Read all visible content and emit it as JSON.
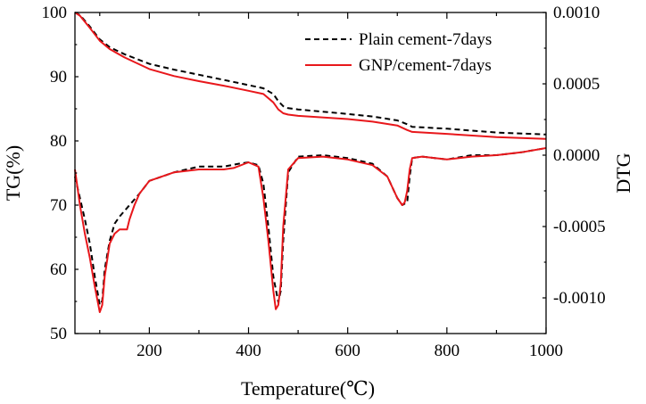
{
  "chart_data": {
    "type": "line",
    "xlabel": "Temperature(℃)",
    "ylabel_left": "TG(%)",
    "ylabel_right": "DTG",
    "xlim": [
      50,
      1000
    ],
    "ylim_left": [
      50,
      100
    ],
    "ylim_right": [
      -0.00125,
      0.001
    ],
    "x_ticks": [
      200,
      400,
      600,
      800,
      1000
    ],
    "x_tick_labels": [
      "200",
      "400",
      "600",
      "800",
      "1000"
    ],
    "y_left_ticks": [
      50,
      60,
      70,
      80,
      90,
      100
    ],
    "y_left_tick_labels": [
      "50",
      "60",
      "70",
      "80",
      "90",
      "100"
    ],
    "y_right_ticks": [
      -0.001,
      -0.0005,
      0.0,
      0.0005,
      0.001
    ],
    "y_right_tick_labels": [
      "-0.0010",
      "-0.0005",
      "0.0000",
      "0.0005",
      "0.0010"
    ],
    "grid": false,
    "legend_position": "top-right",
    "series": [
      {
        "name": "Plain cement-7days",
        "axis": "left",
        "color": "#000000",
        "style": "dashed",
        "x": [
          50,
          60,
          80,
          100,
          120,
          150,
          200,
          250,
          300,
          350,
          400,
          430,
          450,
          460,
          470,
          480,
          500,
          600,
          650,
          700,
          720,
          730,
          800,
          900,
          1000
        ],
        "y": [
          100,
          99.6,
          97.8,
          95.8,
          94.6,
          93.5,
          92.0,
          91.1,
          90.3,
          89.5,
          88.7,
          88.2,
          87.3,
          86.2,
          85.4,
          85.1,
          84.9,
          84.2,
          83.8,
          83.2,
          82.6,
          82.2,
          81.9,
          81.3,
          81.0
        ]
      },
      {
        "name": "GNP/cement-7days",
        "axis": "left",
        "color": "#e8171b",
        "style": "solid",
        "x": [
          50,
          60,
          80,
          100,
          120,
          150,
          200,
          250,
          300,
          350,
          400,
          430,
          450,
          460,
          470,
          480,
          500,
          600,
          650,
          700,
          720,
          730,
          800,
          900,
          1000
        ],
        "y": [
          100,
          99.5,
          97.6,
          95.6,
          94.3,
          93.0,
          91.2,
          90.1,
          89.3,
          88.6,
          87.8,
          87.3,
          86.0,
          84.9,
          84.3,
          84.1,
          83.9,
          83.4,
          83.0,
          82.4,
          81.7,
          81.4,
          81.1,
          80.6,
          80.3
        ]
      },
      {
        "name": "",
        "axis": "right",
        "color": "#000000",
        "style": "dashed",
        "x": [
          50,
          60,
          70,
          80,
          90,
          100,
          105,
          110,
          120,
          130,
          140,
          160,
          180,
          200,
          250,
          300,
          350,
          380,
          400,
          420,
          430,
          440,
          450,
          460,
          465,
          470,
          480,
          500,
          550,
          600,
          650,
          680,
          700,
          710,
          720,
          725,
          730,
          750,
          800,
          850,
          900,
          950,
          1000
        ],
        "y": [
          -0.00015,
          -0.0003,
          -0.00045,
          -0.00062,
          -0.00085,
          -0.00105,
          -0.00102,
          -0.0008,
          -0.0006,
          -0.00048,
          -0.00043,
          -0.00035,
          -0.00027,
          -0.00018,
          -0.00012,
          -8e-05,
          -8e-05,
          -6e-05,
          -5e-05,
          -7e-05,
          -0.0002,
          -0.0005,
          -0.00085,
          -0.00103,
          -0.00095,
          -0.0006,
          -0.00012,
          -1e-05,
          0.0,
          -2e-05,
          -6e-05,
          -0.00015,
          -0.0003,
          -0.00035,
          -0.00033,
          -0.00015,
          -2e-05,
          -1e-05,
          -3e-05,
          0.0,
          0.0,
          2e-05,
          5e-05
        ]
      },
      {
        "name": "",
        "axis": "right",
        "color": "#e8171b",
        "style": "solid",
        "x": [
          50,
          60,
          70,
          80,
          90,
          100,
          105,
          110,
          120,
          130,
          140,
          155,
          160,
          170,
          180,
          200,
          250,
          300,
          350,
          370,
          400,
          420,
          430,
          440,
          450,
          455,
          460,
          465,
          470,
          480,
          500,
          550,
          600,
          650,
          680,
          700,
          710,
          715,
          720,
          725,
          730,
          750,
          800,
          850,
          900,
          950,
          1000
        ],
        "y": [
          -0.0001,
          -0.00035,
          -0.00055,
          -0.00072,
          -0.00092,
          -0.0011,
          -0.00105,
          -0.00085,
          -0.00062,
          -0.00055,
          -0.00052,
          -0.00052,
          -0.00045,
          -0.00035,
          -0.00027,
          -0.00018,
          -0.00012,
          -0.0001,
          -0.0001,
          -9e-05,
          -5e-05,
          -8e-05,
          -0.0003,
          -0.0006,
          -0.00095,
          -0.00108,
          -0.00105,
          -0.0009,
          -0.0005,
          -0.0001,
          -2e-05,
          -1e-05,
          -3e-05,
          -7e-05,
          -0.00015,
          -0.0003,
          -0.00035,
          -0.00033,
          -0.00025,
          -0.0001,
          -2e-05,
          -1e-05,
          -3e-05,
          -1e-05,
          0.0,
          2e-05,
          5e-05
        ]
      }
    ]
  }
}
